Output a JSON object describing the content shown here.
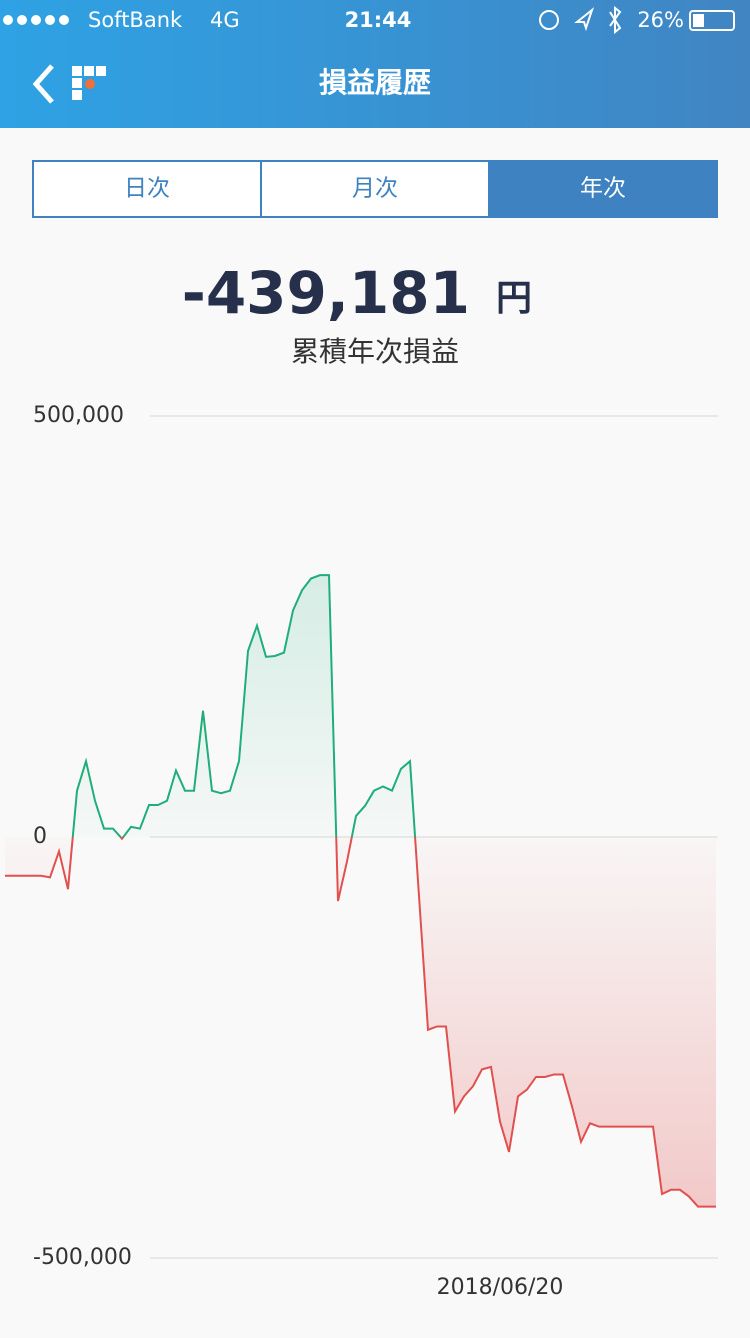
{
  "status_bar": {
    "carrier": "SoftBank",
    "network": "4G",
    "time": "21:44",
    "battery": "26%"
  },
  "header": {
    "title": "損益履歴"
  },
  "tabs": [
    "日次",
    "月次",
    "年次"
  ],
  "selected_tab": 2,
  "summary": {
    "value": "-439,181",
    "unit": "円",
    "label": "累積年次損益"
  },
  "chart_data": {
    "type": "line",
    "categories": [
      null,
      null,
      null,
      null,
      null,
      null,
      null,
      null,
      null,
      null,
      null,
      null,
      null,
      null,
      null,
      null,
      null,
      null,
      null,
      null,
      null,
      null,
      null,
      null,
      null,
      null,
      null,
      null,
      null,
      null,
      null,
      null,
      null,
      null,
      null,
      null,
      null,
      null,
      null,
      null,
      null,
      null,
      null,
      null,
      null,
      null,
      null,
      null,
      null,
      null,
      null,
      null,
      null,
      null,
      null,
      "2018/06/20",
      null,
      null,
      null,
      null,
      null,
      null,
      null,
      null,
      null,
      null,
      null,
      null,
      null,
      null,
      null,
      null,
      null,
      null,
      null,
      null,
      null,
      null,
      null,
      null
    ],
    "series": [
      {
        "name": null,
        "color": "#1fae7a",
        "negative_color": "#e0504f",
        "values": [
          -46000,
          -46000,
          -46000,
          -46000,
          -46000,
          -48000,
          -17000,
          -62000,
          55000,
          90000,
          43000,
          10000,
          10000,
          -2000,
          12000,
          10000,
          38000,
          38000,
          43000,
          79000,
          55000,
          55000,
          150000,
          55000,
          52000,
          55000,
          90000,
          221000,
          251000,
          214000,
          215000,
          219000,
          269000,
          293000,
          307000,
          311000,
          311000,
          -76000,
          -29000,
          25000,
          37000,
          55000,
          60000,
          55000,
          81000,
          90000,
          -70000,
          -229000,
          -225000,
          -225000,
          -326000,
          -308000,
          -296000,
          -276000,
          -273000,
          -338000,
          -374000,
          -308000,
          -300000,
          -285000,
          -285000,
          -282000,
          -282000,
          -320000,
          -362000,
          -340000,
          -344000,
          -344000,
          -344000,
          -344000,
          -344000,
          -344000,
          -344000,
          -424000,
          -419000,
          -419000,
          -427000,
          -439000,
          -439000,
          -439000
        ]
      }
    ],
    "ylim": [
      -500000,
      500000
    ],
    "yticks": [
      {
        "value": 500000,
        "label": "500,000"
      },
      0,
      {
        "value": -500000,
        "label": "-500,000"
      }
    ],
    "grid": true
  }
}
